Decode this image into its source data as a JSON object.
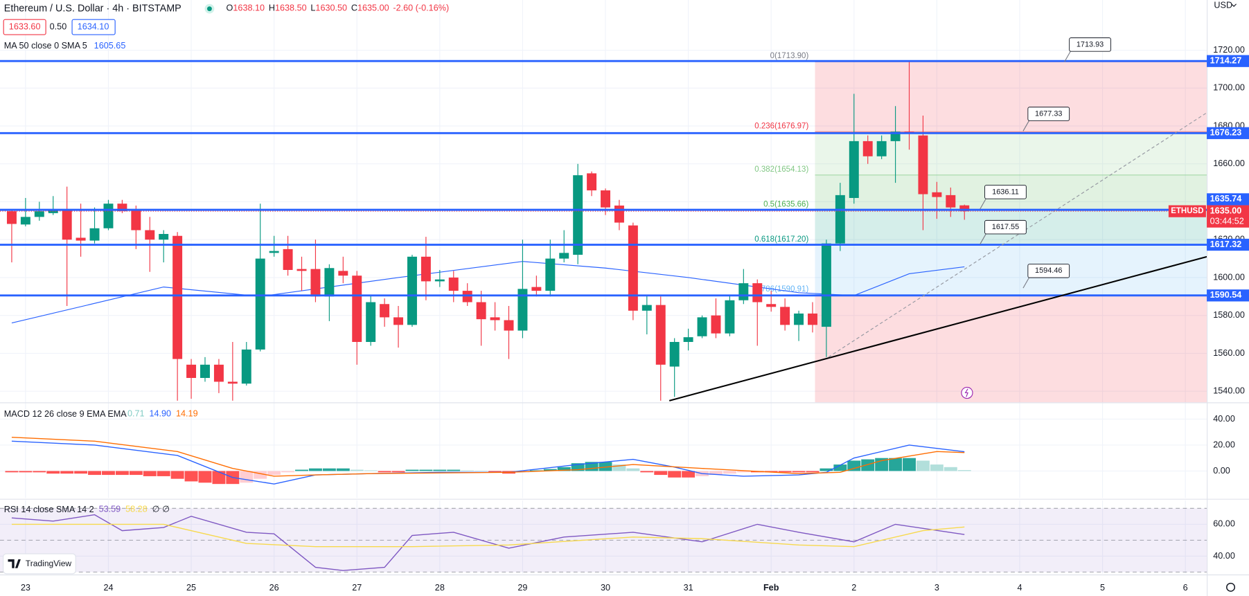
{
  "header": {
    "symbol": "Ethereum / U.S. Dollar · 4h · BITSTAMP",
    "ohlc": [
      {
        "key": "O",
        "value": "1638.10"
      },
      {
        "key": "H",
        "value": "1638.50"
      },
      {
        "key": "L",
        "value": "1630.50"
      },
      {
        "key": "C",
        "value": "1635.00"
      }
    ],
    "change": "-2.60 (-0.16%)",
    "bid": "1633.60",
    "spread": "0.50",
    "ask": "1634.10",
    "currency": "USD"
  },
  "watermark": "TradingView",
  "chart_data": [
    {
      "type": "candlestick",
      "legend": "MA 50 close 0 SMA 5",
      "legend_value": "1605.65",
      "up_color": "#089981",
      "down_color": "#f23645",
      "grid": true,
      "x": [
        -4,
        0,
        4,
        8,
        12,
        16,
        20,
        24,
        28,
        32,
        36,
        40,
        44,
        48,
        52,
        56,
        60,
        64,
        68,
        72,
        76,
        80,
        84,
        88,
        92,
        96,
        100,
        104,
        108,
        112,
        116,
        120,
        124,
        128,
        132,
        136,
        140,
        144,
        148,
        152,
        156,
        160,
        164,
        168,
        172,
        176,
        180,
        184,
        188,
        192,
        196,
        200,
        204,
        208,
        212,
        216,
        220,
        224,
        228,
        232,
        236,
        240,
        244,
        248,
        252,
        256,
        260,
        264,
        268,
        272
      ],
      "open": [
        1635,
        1628,
        1632,
        1634,
        1636,
        1621,
        1619.5,
        1626,
        1639,
        1636,
        1625,
        1620,
        1622,
        1554,
        1547,
        1554,
        1545,
        1544,
        1562,
        1613,
        1615,
        1604.5,
        1604.5,
        1590,
        1603.5,
        1601,
        1566,
        1586,
        1579,
        1575,
        1611,
        1598,
        1600,
        1593,
        1587,
        1579,
        1577.5,
        1572,
        1595,
        1593,
        1610,
        1612,
        1655,
        1646,
        1638,
        1627.5,
        1582.5,
        1585.5,
        1553,
        1566,
        1569,
        1580,
        1570.5,
        1588,
        1597,
        1586,
        1584.5,
        1575,
        1581,
        1574,
        1618,
        1642,
        1672,
        1664,
        1672,
        1677,
        1675,
        1645,
        1643.5,
        1638.1
      ],
      "high": [
        1636,
        1642,
        1640,
        1643,
        1648,
        1639,
        1637,
        1641,
        1641,
        1638,
        1632,
        1625,
        1624,
        1557,
        1558,
        1557,
        1566,
        1566,
        1639,
        1622,
        1622,
        1611,
        1620,
        1607,
        1611,
        1603.5,
        1591,
        1589,
        1585,
        1612,
        1621.5,
        1604,
        1603.5,
        1597,
        1593,
        1587,
        1585,
        1620,
        1601,
        1620,
        1625,
        1660,
        1656,
        1647,
        1641,
        1629,
        1591,
        1590,
        1568,
        1573,
        1580,
        1589,
        1591,
        1604.5,
        1599,
        1593,
        1589,
        1582.5,
        1587,
        1620,
        1650,
        1697,
        1675,
        1675,
        1690.5,
        1714,
        1685.5,
        1650.5,
        1647.5,
        1638.5
      ],
      "low": [
        1608,
        1627,
        1630,
        1633,
        1585,
        1611,
        1618,
        1625,
        1634,
        1615,
        1603,
        1608,
        1535,
        1536,
        1545,
        1539,
        1535,
        1543,
        1561,
        1611,
        1601,
        1593,
        1587,
        1577,
        1597,
        1554,
        1564,
        1574,
        1563,
        1574,
        1588,
        1595,
        1587,
        1585,
        1564,
        1572,
        1557,
        1568,
        1590,
        1590,
        1608,
        1607,
        1643,
        1633,
        1625,
        1577.5,
        1570,
        1535,
        1537,
        1561.5,
        1568,
        1568,
        1569,
        1586,
        1564,
        1582,
        1572,
        1566.5,
        1571,
        1558,
        1614,
        1639,
        1660,
        1662.5,
        1650,
        1667.5,
        1625,
        1631,
        1632,
        1630.5
      ],
      "close": [
        1628.3,
        1632,
        1635,
        1636,
        1620,
        1619.5,
        1626,
        1639,
        1635,
        1625,
        1620,
        1623,
        1557,
        1547,
        1554,
        1545,
        1544,
        1562,
        1610,
        1614,
        1604,
        1603.5,
        1590,
        1605,
        1601,
        1566,
        1587,
        1579,
        1575,
        1611,
        1598,
        1599,
        1593,
        1587,
        1578,
        1577.5,
        1572,
        1594,
        1593,
        1610,
        1613,
        1654,
        1646,
        1637,
        1629,
        1582.5,
        1585.5,
        1554,
        1566,
        1568.5,
        1579,
        1570.5,
        1588,
        1597,
        1587,
        1584.5,
        1575,
        1581,
        1575,
        1618,
        1643.5,
        1672,
        1664,
        1672,
        1677,
        1676,
        1644,
        1642.5,
        1637,
        1635
      ],
      "ma": {
        "color": "#2962ff",
        "x": [
          -4,
          40,
          68,
          108,
          144,
          168,
          192,
          224,
          240,
          256,
          272
        ],
        "values": [
          1576,
          1595,
          1590,
          1600,
          1608.5,
          1605,
          1600,
          1592,
          1590.5,
          1602,
          1605.65
        ]
      },
      "xlim": [
        -7.4,
        342.2
      ],
      "ylim": [
        1534.1,
        1746.5
      ],
      "xticks": [
        {
          "value": 0,
          "label": "23"
        },
        {
          "value": 24,
          "label": "24"
        },
        {
          "value": 48,
          "label": "25"
        },
        {
          "value": 72,
          "label": "26"
        },
        {
          "value": 96,
          "label": "27"
        },
        {
          "value": 120,
          "label": "28"
        },
        {
          "value": 144,
          "label": "29"
        },
        {
          "value": 168,
          "label": "30"
        },
        {
          "value": 192,
          "label": "31"
        },
        {
          "value": 216,
          "label": "Feb"
        },
        {
          "value": 240,
          "label": "2"
        },
        {
          "value": 264,
          "label": "3"
        },
        {
          "value": 288,
          "label": "4"
        },
        {
          "value": 312,
          "label": "5"
        },
        {
          "value": 336,
          "label": "6"
        }
      ],
      "yticks": [
        {
          "value": 1540,
          "label": "1540.00"
        },
        {
          "value": 1560,
          "label": "1560.00"
        },
        {
          "value": 1580,
          "label": "1580.00"
        },
        {
          "value": 1600,
          "label": "1600.00"
        },
        {
          "value": 1620,
          "label": "1620.00"
        },
        {
          "value": 1640,
          "label": "1640.00"
        },
        {
          "value": 1660,
          "label": "1660.00"
        },
        {
          "value": 1680,
          "label": "1680.00"
        },
        {
          "value": 1700,
          "label": "1700.00"
        },
        {
          "value": 1720,
          "label": "1720.00"
        }
      ],
      "hlines": {
        "color": "#2962ff",
        "values": [
          1714.27,
          1676.23,
          1635.74,
          1617.32,
          1590.54
        ]
      },
      "last_price": {
        "value": 1635,
        "label": "1635.00",
        "symbol": "ETHUSD",
        "countdown": "03:44:52",
        "color": "#f23645"
      },
      "callouts": {
        "x": [
          301,
          289,
          276.5,
          276.5,
          289
        ],
        "values": [
          1713.93,
          1677.33,
          1636.11,
          1617.55,
          1594.46
        ]
      },
      "fib": {
        "x_start": 228.7,
        "bottom_color": "#f23645",
        "levels": [
          {
            "value": 1713.9,
            "label": "0(1713.90)",
            "color": "#787b86"
          },
          {
            "value": 1676.97,
            "label": "0.236(1676.97)",
            "color": "#f23645"
          },
          {
            "value": 1654.13,
            "label": "0.382(1654.13)",
            "color": "#81c784"
          },
          {
            "value": 1635.66,
            "label": "0.5(1635.66)",
            "color": "#4caf50"
          },
          {
            "value": 1617.2,
            "label": "0.618(1617.20)",
            "color": "#089981"
          },
          {
            "value": 1590.91,
            "label": "0.786(1590.91)",
            "color": "#64b5f6"
          }
        ]
      },
      "trendline": {
        "color": "#000000",
        "x": [
          186.5,
          342.2
        ],
        "values": [
          1535,
          1611
        ]
      },
      "projection": {
        "color": "#9598a1",
        "x": [
          232.6,
          342.2
        ],
        "values": [
          1558,
          1687
        ]
      }
    },
    {
      "type": "macd",
      "legend": "MACD 12 26 close 9 EMA EMA",
      "legend_values": [
        "0.71",
        "14.90",
        "14.19"
      ],
      "legend_colors": [
        "#80cbc4",
        "#2962ff",
        "#ff6d00"
      ],
      "hist_colors": {
        "up_grow": "#26a69a",
        "up_fall": "#b2dfdb",
        "down_grow": "#ff5252",
        "down_fall": "#ffcdd2"
      },
      "histogram": [
        -1,
        -1,
        -1,
        -2,
        -2,
        -2,
        -3,
        -3,
        -3,
        -3,
        -4,
        -4,
        -6,
        -8,
        -9,
        -10,
        -10,
        -9,
        -6,
        -3,
        -1,
        1,
        2,
        2,
        2,
        1,
        0.5,
        -1,
        -1,
        1,
        1,
        1,
        1,
        0.5,
        0.3,
        -1,
        -2,
        -1,
        0.5,
        1.5,
        3,
        6,
        7,
        7,
        5,
        2,
        -1,
        -3,
        -5,
        -5,
        -4,
        -3,
        -2,
        -1,
        -1,
        -1,
        -1,
        -1,
        -1,
        2,
        5,
        8,
        9,
        10,
        10,
        10,
        8,
        5,
        3,
        0.71
      ],
      "series": [
        {
          "name": "MACD",
          "color": "#2962ff",
          "x": [
            -4,
            20,
            44,
            60,
            72,
            84,
            100,
            120,
            140,
            160,
            176,
            188,
            196,
            208,
            224,
            232,
            240,
            256,
            272
          ],
          "values": [
            23,
            20,
            12,
            -5,
            -10,
            -3,
            -2,
            -1,
            -1,
            5,
            9,
            3,
            -2,
            -4,
            -3,
            -1,
            10,
            20,
            14.9
          ]
        },
        {
          "name": "Signal",
          "color": "#ff6d00",
          "x": [
            -4,
            20,
            44,
            60,
            72,
            84,
            100,
            140,
            160,
            176,
            196,
            224,
            236,
            248,
            264,
            272
          ],
          "values": [
            26,
            23,
            15,
            2,
            -4,
            -3,
            -2,
            -1,
            1,
            5,
            2,
            -2,
            -1,
            8,
            15,
            14.19
          ]
        }
      ],
      "ylim": [
        -20.8,
        52.9
      ],
      "yticks": [
        {
          "value": 0,
          "label": "0.00"
        },
        {
          "value": 20,
          "label": "20.00"
        },
        {
          "value": 40,
          "label": "40.00"
        }
      ]
    },
    {
      "type": "rsi",
      "legend": "RSI 14 close SMA 14 2",
      "legend_values": [
        "53.59",
        "58.28",
        "∅ ∅"
      ],
      "legend_colors": [
        "#7e57c2",
        "#f7d94c",
        "#131722"
      ],
      "band": [
        30,
        70
      ],
      "midline": 50,
      "band_color": "#7e57c2",
      "series": [
        {
          "name": "RSI",
          "color": "#7e57c2",
          "x": [
            -4,
            8,
            20,
            28,
            40,
            48,
            64,
            72,
            84,
            92,
            104,
            112,
            124,
            140,
            156,
            176,
            196,
            212,
            224,
            240,
            252,
            272
          ],
          "values": [
            64,
            62,
            66,
            56,
            58,
            65,
            55,
            54,
            33,
            31,
            33,
            53,
            55,
            45,
            52,
            55,
            49,
            60,
            55,
            49,
            60,
            53.59
          ]
        },
        {
          "name": "RSI-based MA",
          "color": "#f7d94c",
          "x": [
            -4,
            40,
            64,
            84,
            112,
            140,
            176,
            196,
            224,
            240,
            260,
            272
          ],
          "values": [
            60,
            60,
            48,
            46,
            46,
            47,
            52,
            51,
            47,
            46,
            56,
            58.28
          ]
        }
      ],
      "ylim": [
        29,
        75
      ],
      "yticks": [
        {
          "value": 40,
          "label": "40.00"
        },
        {
          "value": 60,
          "label": "60.00"
        }
      ]
    }
  ]
}
